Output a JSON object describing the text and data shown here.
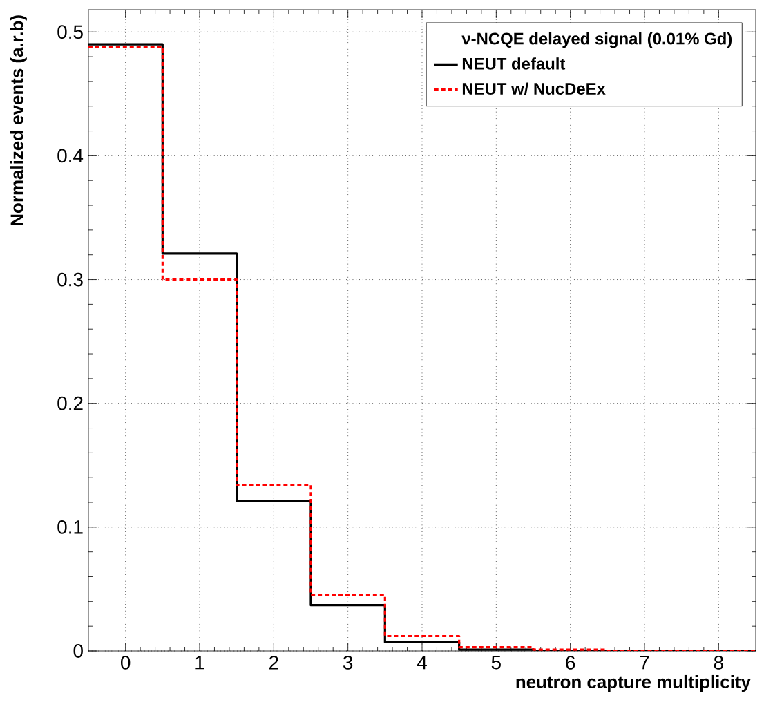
{
  "chart_data": {
    "type": "histogram",
    "xlabel": "neutron capture multiplicity",
    "ylabel": "Normalized events (a.r.b)",
    "legend_title": "ν-NCQE delayed signal (0.01% Gd)",
    "bins": [
      -0.5,
      0.5,
      1.5,
      2.5,
      3.5,
      4.5,
      5.5,
      6.5,
      7.5,
      8.5
    ],
    "series": [
      {
        "name": "NEUT default",
        "color": "#000000",
        "line_style": "solid",
        "values": [
          0.49,
          0.321,
          0.121,
          0.037,
          0.007,
          0.001,
          0,
          0,
          0
        ]
      },
      {
        "name": "NEUT w/ NucDeEx",
        "color": "#ff0000",
        "line_style": "dotted",
        "values": [
          0.488,
          0.3,
          0.134,
          0.045,
          0.012,
          0.003,
          0.001,
          0,
          0
        ]
      }
    ],
    "xlim": [
      -0.5,
      8.5
    ],
    "ylim": [
      0,
      0.518
    ],
    "xticks": [
      0,
      1,
      2,
      3,
      4,
      5,
      6,
      7,
      8
    ],
    "yticks": [
      0,
      0.1,
      0.2,
      0.3,
      0.4,
      0.5
    ],
    "grid": true,
    "legend": "top right"
  }
}
